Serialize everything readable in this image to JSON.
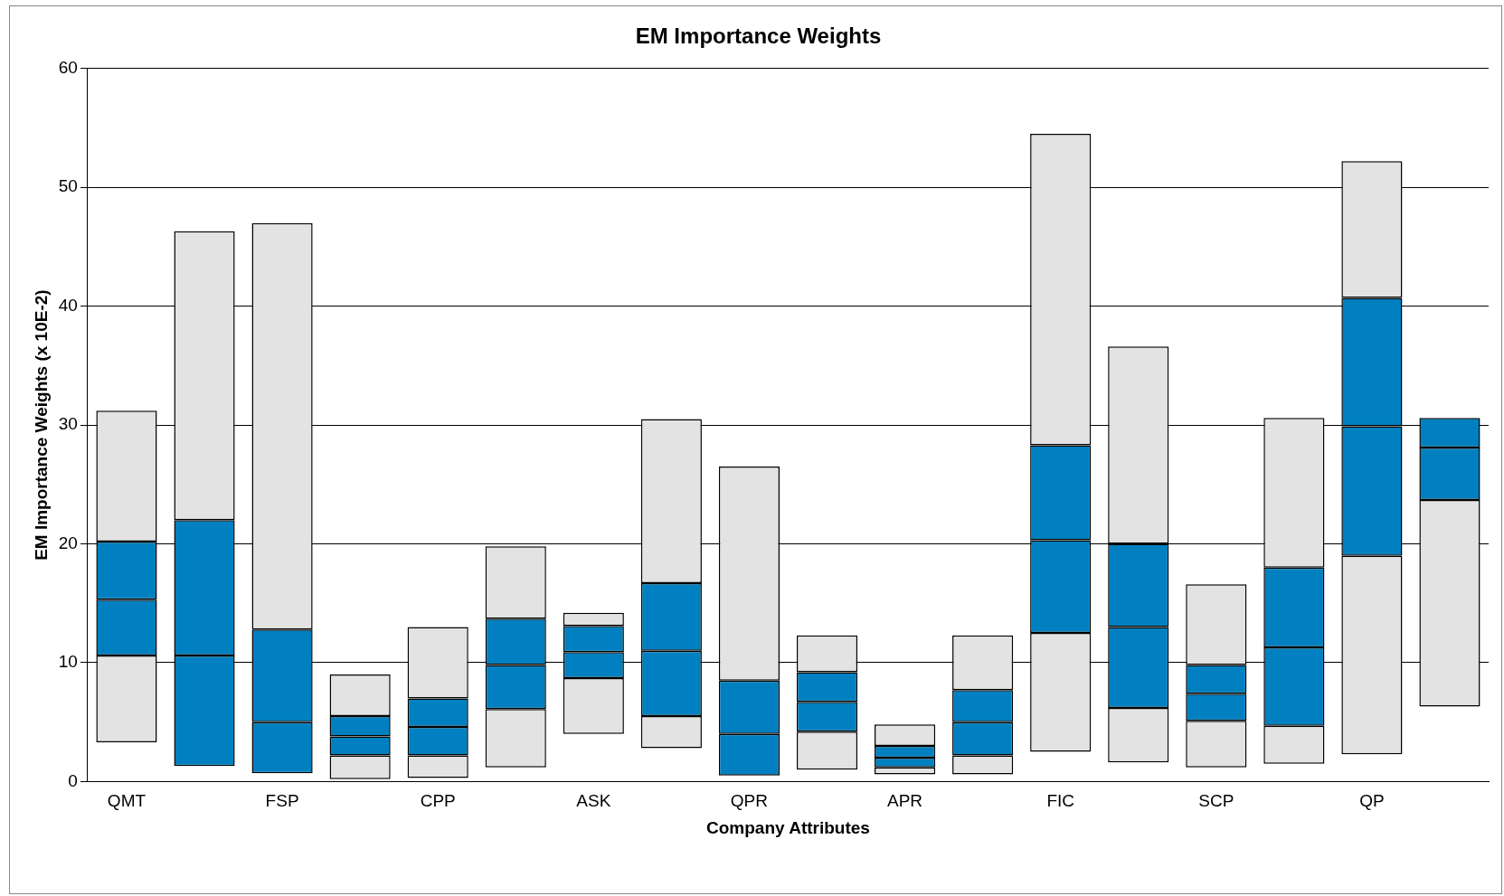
{
  "chart_data": {
    "type": "bar",
    "title": "EM Importance Weights",
    "xlabel": "Company Attributes",
    "ylabel": "EM Importance Weights (x 10E-2)",
    "categories": [
      "QMT",
      null,
      "FSP",
      null,
      "CPP",
      null,
      "ASK",
      null,
      "QPR",
      null,
      "APR",
      null,
      "FIC",
      null,
      "SCP",
      null,
      "QP",
      null
    ],
    "series": [
      {
        "color": "#e3e3e3",
        "base": [
          3.3,
          null,
          null,
          0.2,
          0.3,
          1.2,
          4.0,
          2.8,
          null,
          1.0,
          0.6,
          0.6,
          2.5,
          1.6,
          1.2,
          1.5,
          2.3,
          6.3
        ],
        "values": [
          7.3,
          null,
          null,
          2.0,
          1.9,
          4.9,
          4.7,
          2.7,
          null,
          3.2,
          0.6,
          1.6,
          10.0,
          4.6,
          3.9,
          3.2,
          16.7,
          17.4
        ]
      },
      {
        "color": "#0080c0",
        "base": [
          10.6,
          1.3,
          0.7,
          2.2,
          2.2,
          6.1,
          8.7,
          5.5,
          0.5,
          4.2,
          1.2,
          2.2,
          12.5,
          6.2,
          5.1,
          4.7,
          19.0,
          23.7
        ],
        "values": [
          4.7,
          9.3,
          4.3,
          1.6,
          2.4,
          3.7,
          2.2,
          5.5,
          3.5,
          2.5,
          0.8,
          2.8,
          7.8,
          6.8,
          2.3,
          6.6,
          10.9,
          4.4
        ]
      },
      {
        "color": "#0080c0",
        "base": [
          15.3,
          10.6,
          5.0,
          3.8,
          4.6,
          9.8,
          10.9,
          11.0,
          4.0,
          6.7,
          2.0,
          5.0,
          20.3,
          13.0,
          7.4,
          11.3,
          29.9,
          28.1
        ],
        "values": [
          4.9,
          11.4,
          7.8,
          1.7,
          2.4,
          3.9,
          2.2,
          5.7,
          4.5,
          2.5,
          1.0,
          2.7,
          8.0,
          7.0,
          2.4,
          6.7,
          10.8,
          2.5
        ]
      },
      {
        "color": "#e3e3e3",
        "base": [
          20.2,
          22.0,
          12.8,
          5.5,
          7.0,
          13.7,
          13.1,
          16.7,
          8.5,
          9.2,
          3.0,
          7.7,
          28.3,
          20.0,
          9.8,
          18.0,
          40.7,
          null
        ],
        "values": [
          11.0,
          24.3,
          34.2,
          3.5,
          6.0,
          6.1,
          1.1,
          13.8,
          18.0,
          3.1,
          1.8,
          4.6,
          26.2,
          16.6,
          6.8,
          12.6,
          11.5,
          null
        ]
      }
    ],
    "ylim": [
      0,
      60
    ],
    "yticks": [
      0,
      10,
      20,
      30,
      40,
      50,
      60
    ],
    "grid": "y"
  }
}
